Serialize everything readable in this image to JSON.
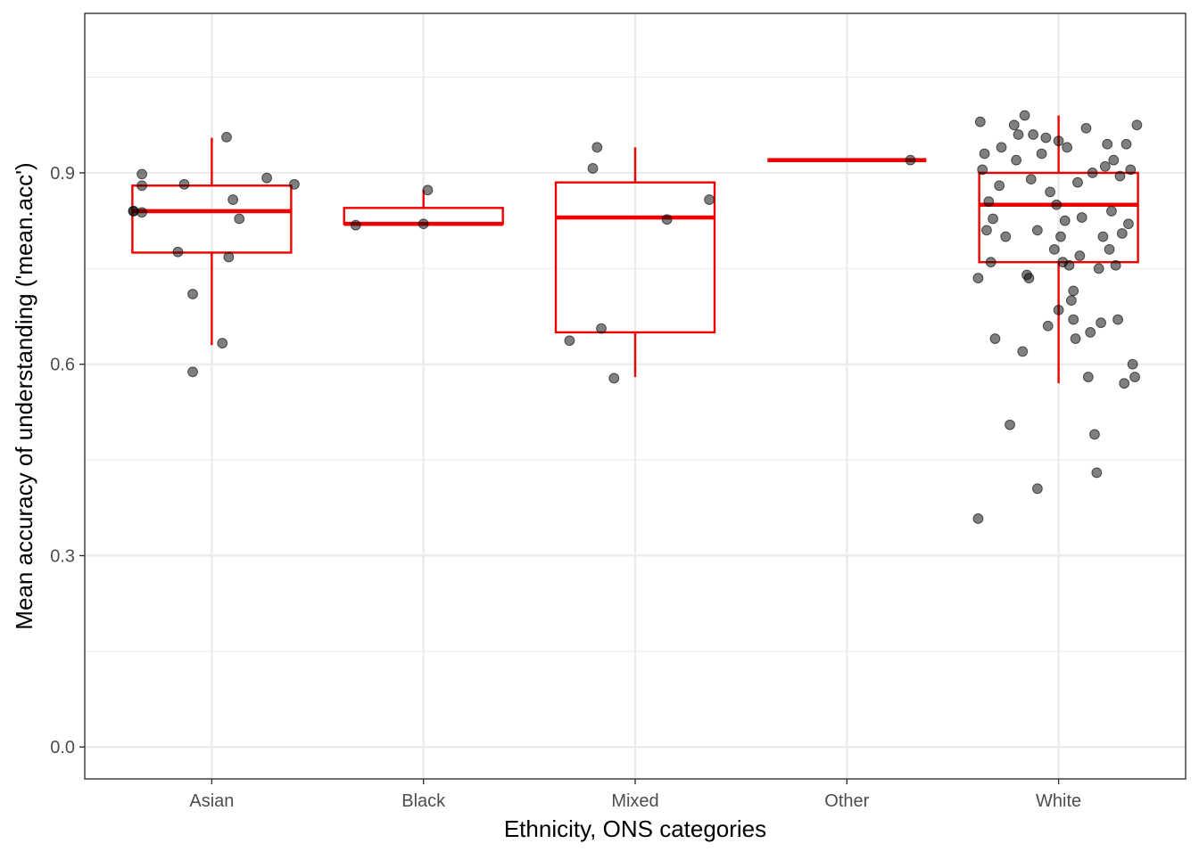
{
  "chart_data": {
    "type": "box",
    "title": "",
    "xlabel": "Ethnicity, ONS categories",
    "ylabel": "Mean accuracy of understanding ('mean.acc')",
    "categories": [
      "Asian",
      "Black",
      "Mixed",
      "Other",
      "White"
    ],
    "ylim": [
      -0.05,
      1.15
    ],
    "y_ticks": [
      0.0,
      0.3,
      0.6,
      0.9
    ],
    "y_tick_labels": [
      "0.0",
      "0.3",
      "0.6",
      "0.9"
    ],
    "grid": true,
    "legend": "none",
    "colors": {
      "box": "#ee0000",
      "point": "#000000",
      "grid": "#ebebeb",
      "panel_border": "#333333"
    },
    "boxes": [
      {
        "category": "Asian",
        "whisker_low": 0.63,
        "q1": 0.775,
        "median": 0.84,
        "q3": 0.88,
        "whisker_high": 0.955
      },
      {
        "category": "Black",
        "whisker_low": 0.82,
        "q1": 0.82,
        "median": 0.82,
        "q3": 0.845,
        "whisker_high": 0.873
      },
      {
        "category": "Mixed",
        "whisker_low": 0.58,
        "q1": 0.65,
        "median": 0.83,
        "q3": 0.885,
        "whisker_high": 0.94
      },
      {
        "category": "Other",
        "whisker_low": 0.92,
        "q1": 0.92,
        "median": 0.92,
        "q3": 0.92,
        "whisker_high": 0.92
      },
      {
        "category": "White",
        "whisker_low": 0.57,
        "q1": 0.76,
        "median": 0.85,
        "q3": 0.9,
        "whisker_high": 0.99
      }
    ],
    "points": [
      {
        "x": 0.63,
        "y": 0.84
      },
      {
        "x": 0.63,
        "y": 0.84
      },
      {
        "x": 0.67,
        "y": 0.898
      },
      {
        "x": 0.67,
        "y": 0.88
      },
      {
        "x": 0.67,
        "y": 0.838
      },
      {
        "x": 0.87,
        "y": 0.882
      },
      {
        "x": 0.84,
        "y": 0.776
      },
      {
        "x": 0.91,
        "y": 0.71
      },
      {
        "x": 0.91,
        "y": 0.588
      },
      {
        "x": 1.05,
        "y": 0.633
      },
      {
        "x": 1.07,
        "y": 0.956
      },
      {
        "x": 1.08,
        "y": 0.768
      },
      {
        "x": 1.1,
        "y": 0.858
      },
      {
        "x": 1.13,
        "y": 0.828
      },
      {
        "x": 1.26,
        "y": 0.892
      },
      {
        "x": 1.39,
        "y": 0.882
      },
      {
        "x": 1.68,
        "y": 0.818
      },
      {
        "x": 2.0,
        "y": 0.82
      },
      {
        "x": 2.02,
        "y": 0.873
      },
      {
        "x": 2.69,
        "y": 0.637
      },
      {
        "x": 2.8,
        "y": 0.907
      },
      {
        "x": 2.82,
        "y": 0.94
      },
      {
        "x": 2.84,
        "y": 0.656
      },
      {
        "x": 2.9,
        "y": 0.578
      },
      {
        "x": 3.15,
        "y": 0.827
      },
      {
        "x": 3.35,
        "y": 0.858
      },
      {
        "x": 4.3,
        "y": 0.92
      },
      {
        "x": 4.62,
        "y": 0.358
      },
      {
        "x": 4.62,
        "y": 0.735
      },
      {
        "x": 4.63,
        "y": 0.98
      },
      {
        "x": 4.64,
        "y": 0.905
      },
      {
        "x": 4.65,
        "y": 0.93
      },
      {
        "x": 4.66,
        "y": 0.81
      },
      {
        "x": 4.67,
        "y": 0.855
      },
      {
        "x": 4.68,
        "y": 0.76
      },
      {
        "x": 4.69,
        "y": 0.828
      },
      {
        "x": 4.7,
        "y": 0.64
      },
      {
        "x": 4.72,
        "y": 0.88
      },
      {
        "x": 4.73,
        "y": 0.94
      },
      {
        "x": 4.75,
        "y": 0.8
      },
      {
        "x": 4.77,
        "y": 0.505
      },
      {
        "x": 4.79,
        "y": 0.975
      },
      {
        "x": 4.8,
        "y": 0.92
      },
      {
        "x": 4.81,
        "y": 0.96
      },
      {
        "x": 4.83,
        "y": 0.62
      },
      {
        "x": 4.84,
        "y": 0.99
      },
      {
        "x": 4.85,
        "y": 0.74
      },
      {
        "x": 4.86,
        "y": 0.735
      },
      {
        "x": 4.87,
        "y": 0.89
      },
      {
        "x": 4.88,
        "y": 0.96
      },
      {
        "x": 4.9,
        "y": 0.405
      },
      {
        "x": 4.9,
        "y": 0.81
      },
      {
        "x": 4.92,
        "y": 0.93
      },
      {
        "x": 4.94,
        "y": 0.955
      },
      {
        "x": 4.95,
        "y": 0.66
      },
      {
        "x": 4.96,
        "y": 0.87
      },
      {
        "x": 4.98,
        "y": 0.78
      },
      {
        "x": 4.99,
        "y": 0.85
      },
      {
        "x": 5.0,
        "y": 0.95
      },
      {
        "x": 5.0,
        "y": 0.685
      },
      {
        "x": 5.01,
        "y": 0.8
      },
      {
        "x": 5.02,
        "y": 0.76
      },
      {
        "x": 5.03,
        "y": 0.825
      },
      {
        "x": 5.04,
        "y": 0.94
      },
      {
        "x": 5.05,
        "y": 0.755
      },
      {
        "x": 5.06,
        "y": 0.7
      },
      {
        "x": 5.07,
        "y": 0.715
      },
      {
        "x": 5.07,
        "y": 0.67
      },
      {
        "x": 5.08,
        "y": 0.64
      },
      {
        "x": 5.09,
        "y": 0.885
      },
      {
        "x": 5.1,
        "y": 0.77
      },
      {
        "x": 5.11,
        "y": 0.83
      },
      {
        "x": 5.13,
        "y": 0.97
      },
      {
        "x": 5.14,
        "y": 0.58
      },
      {
        "x": 5.15,
        "y": 0.65
      },
      {
        "x": 5.16,
        "y": 0.9
      },
      {
        "x": 5.17,
        "y": 0.49
      },
      {
        "x": 5.18,
        "y": 0.43
      },
      {
        "x": 5.19,
        "y": 0.75
      },
      {
        "x": 5.2,
        "y": 0.665
      },
      {
        "x": 5.21,
        "y": 0.8
      },
      {
        "x": 5.22,
        "y": 0.91
      },
      {
        "x": 5.23,
        "y": 0.945
      },
      {
        "x": 5.24,
        "y": 0.78
      },
      {
        "x": 5.25,
        "y": 0.84
      },
      {
        "x": 5.26,
        "y": 0.92
      },
      {
        "x": 5.27,
        "y": 0.755
      },
      {
        "x": 5.28,
        "y": 0.67
      },
      {
        "x": 5.29,
        "y": 0.895
      },
      {
        "x": 5.3,
        "y": 0.805
      },
      {
        "x": 5.31,
        "y": 0.57
      },
      {
        "x": 5.32,
        "y": 0.945
      },
      {
        "x": 5.33,
        "y": 0.82
      },
      {
        "x": 5.34,
        "y": 0.905
      },
      {
        "x": 5.35,
        "y": 0.6
      },
      {
        "x": 5.36,
        "y": 0.58
      },
      {
        "x": 5.37,
        "y": 0.975
      }
    ]
  }
}
